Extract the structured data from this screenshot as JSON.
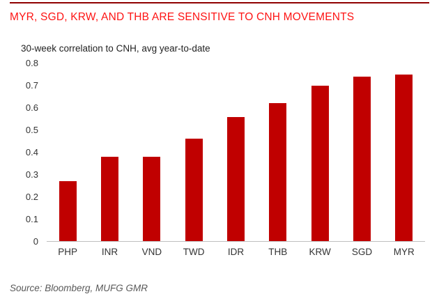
{
  "header": {
    "title": "MYR, SGD, KRW, AND THB ARE SENSITIVE TO CNH MOVEMENTS"
  },
  "chart_data": {
    "type": "bar",
    "title": "30-week correlation to CNH, avg year-to-date",
    "categories": [
      "PHP",
      "INR",
      "VND",
      "TWD",
      "IDR",
      "THB",
      "KRW",
      "SGD",
      "MYR"
    ],
    "values": [
      0.27,
      0.38,
      0.38,
      0.46,
      0.56,
      0.62,
      0.7,
      0.74,
      0.75
    ],
    "xlabel": "",
    "ylabel": "",
    "ylim": [
      0,
      0.8
    ],
    "ytick_labels": [
      "0.8",
      "0.7",
      "0.6",
      "0.5",
      "0.4",
      "0.3",
      "0.2",
      "0.1",
      "0"
    ],
    "ytick_values": [
      0.8,
      0.7,
      0.6,
      0.5,
      0.4,
      0.3,
      0.2,
      0.1,
      0
    ],
    "grid": false,
    "legend": "none",
    "bar_color": "#c00000",
    "axis_line_color": "#bfbfbf"
  },
  "footer": {
    "source": "Source: Bloomberg, MUFG GMR"
  },
  "colors": {
    "title_red": "#fe1414",
    "top_rule_red": "#8f0000",
    "bar_red": "#c00000",
    "axis_gray": "#bfbfbf",
    "source_gray": "#595959"
  }
}
